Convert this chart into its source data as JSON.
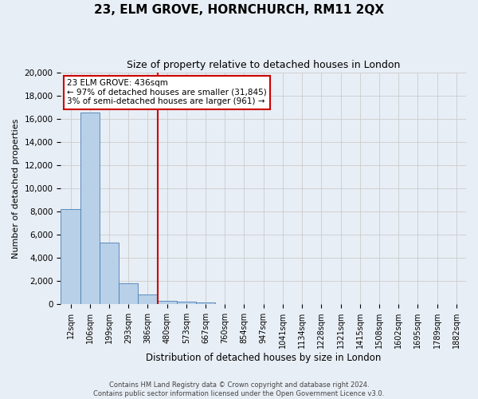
{
  "title": "23, ELM GROVE, HORNCHURCH, RM11 2QX",
  "subtitle": "Size of property relative to detached houses in London",
  "xlabel": "Distribution of detached houses by size in London",
  "ylabel": "Number of detached properties",
  "bar_labels": [
    "12sqm",
    "106sqm",
    "199sqm",
    "293sqm",
    "386sqm",
    "480sqm",
    "573sqm",
    "667sqm",
    "760sqm",
    "854sqm",
    "947sqm",
    "1041sqm",
    "1134sqm",
    "1228sqm",
    "1321sqm",
    "1415sqm",
    "1508sqm",
    "1602sqm",
    "1695sqm",
    "1789sqm",
    "1882sqm"
  ],
  "bar_values": [
    8200,
    16500,
    5300,
    1800,
    820,
    280,
    210,
    160,
    0,
    0,
    0,
    0,
    0,
    0,
    0,
    0,
    0,
    0,
    0,
    0,
    0
  ],
  "bar_color": "#b8d0e8",
  "bar_edge_color": "#4a7fb5",
  "ylim": [
    0,
    20000
  ],
  "yticks": [
    0,
    2000,
    4000,
    6000,
    8000,
    10000,
    12000,
    14000,
    16000,
    18000,
    20000
  ],
  "vline_color": "#cc0000",
  "annotation_title": "23 ELM GROVE: 436sqm",
  "annotation_line1": "← 97% of detached houses are smaller (31,845)",
  "annotation_line2": "3% of semi-detached houses are larger (961) →",
  "annotation_box_color": "#ffffff",
  "annotation_box_edge": "#cc0000",
  "grid_color": "#cccccc",
  "background_color": "#e8eef5",
  "footer_line1": "Contains HM Land Registry data © Crown copyright and database right 2024.",
  "footer_line2": "Contains public sector information licensed under the Open Government Licence v3.0."
}
